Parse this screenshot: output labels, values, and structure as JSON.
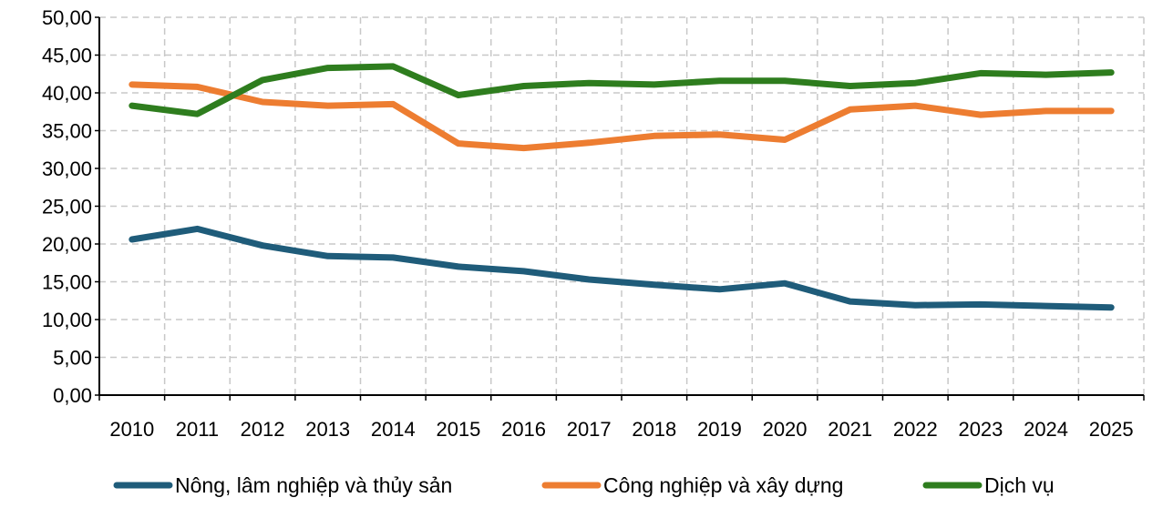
{
  "chart_data": {
    "type": "line",
    "title": "",
    "xlabel": "",
    "ylabel": "",
    "categories": [
      "2010",
      "2011",
      "2012",
      "2013",
      "2014",
      "2015",
      "2016",
      "2017",
      "2018",
      "2019",
      "2020",
      "2021",
      "2022",
      "2023",
      "2024",
      "2025"
    ],
    "ylim": [
      0,
      50
    ],
    "yticks": [
      "0,00",
      "5,00",
      "10,00",
      "15,00",
      "20,00",
      "25,00",
      "30,00",
      "35,00",
      "40,00",
      "45,00",
      "50,00"
    ],
    "grid": true,
    "legend_position": "bottom",
    "series": [
      {
        "name": "Nông, lâm nghiệp và thủy sản",
        "color": "#1f5c7a",
        "values": [
          20.6,
          22.0,
          19.8,
          18.4,
          18.2,
          17.0,
          16.4,
          15.3,
          14.6,
          14.0,
          14.8,
          12.4,
          11.9,
          12.0,
          11.8,
          11.6
        ]
      },
      {
        "name": "Công nghiệp và xây dựng",
        "color": "#ed7d31",
        "values": [
          41.1,
          40.8,
          38.8,
          38.3,
          38.5,
          33.3,
          32.7,
          33.4,
          34.3,
          34.5,
          33.8,
          37.8,
          38.3,
          37.1,
          37.6,
          37.6
        ]
      },
      {
        "name": "Dịch vụ",
        "color": "#2e7d1e",
        "values": [
          38.3,
          37.2,
          41.7,
          43.3,
          43.5,
          39.7,
          40.9,
          41.3,
          41.1,
          41.6,
          41.6,
          40.9,
          41.3,
          42.6,
          42.4,
          42.7
        ]
      }
    ]
  }
}
